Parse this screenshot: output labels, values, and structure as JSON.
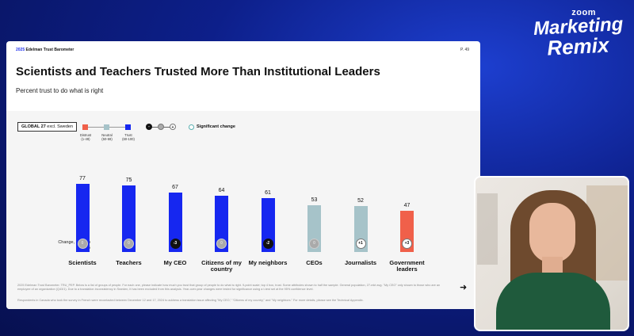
{
  "brand": {
    "zoom": "zoom",
    "line1": "Marketing",
    "line2": "Remix"
  },
  "slide": {
    "header_year": "2025",
    "header_name": "Edelman Trust Barometer",
    "page": "P. 49",
    "title": "Scientists and Teachers Trusted More Than Institutional Leaders",
    "subtitle": "Percent trust to do what is right",
    "global_label": "GLOBAL 27",
    "global_excl": "excl. Sweden",
    "legend": [
      {
        "label": "Distrust",
        "range": "(1-49)",
        "color": "#f0604a"
      },
      {
        "label": "Neutral",
        "range": "(50-59)",
        "color": "#a6c3c9"
      },
      {
        "label": "Trust",
        "range": "(60-100)",
        "color": "#1627f0"
      }
    ],
    "change_legend": [
      "-",
      "",
      "+"
    ],
    "significant_label": "Significant change",
    "change_label": "Change, 2024 to 2025",
    "footnote1": "2025 Edelman Trust Barometer. TRU_PEP. Below is a list of groups of people. For each one, please indicate how much you trust that group of people to do what is right. 9-point scale; top 4 box, trust. Some attributes shown to half the sample. General population, 27-mkt avg. \"My CEO\" only shown to those who are an employee of an organization (Q43/1). Due to a translation inconsistency in Sweden, it has been excluded from this analysis. Year-over-year changes were tested for significance using a t-test set at the 95% confidence level.",
    "footnote2": "Respondents in Canada who took the survey in French were recontacted between December 12 and 17, 2024 to address a translation issue affecting \"My CEO,\" \"Citizens of my country,\" and \"My neighbors.\" For more details, please see the Technical Appendix.",
    "arrow": "➜"
  },
  "chart_data": {
    "type": "bar",
    "categories": [
      "Scientists",
      "Teachers",
      "My CEO",
      "Citizens of my country",
      "My neighbors",
      "CEOs",
      "Journalists",
      "Government leaders"
    ],
    "values": [
      77,
      75,
      67,
      64,
      61,
      53,
      52,
      47
    ],
    "changes": [
      "0",
      "0",
      "-3",
      "0",
      "-2",
      "0",
      "+1",
      "+3"
    ],
    "colors": [
      "#1627f0",
      "#1627f0",
      "#1627f0",
      "#1627f0",
      "#1627f0",
      "#a6c3c9",
      "#a6c3c9",
      "#f0604a"
    ],
    "ylim": [
      0,
      100
    ]
  }
}
